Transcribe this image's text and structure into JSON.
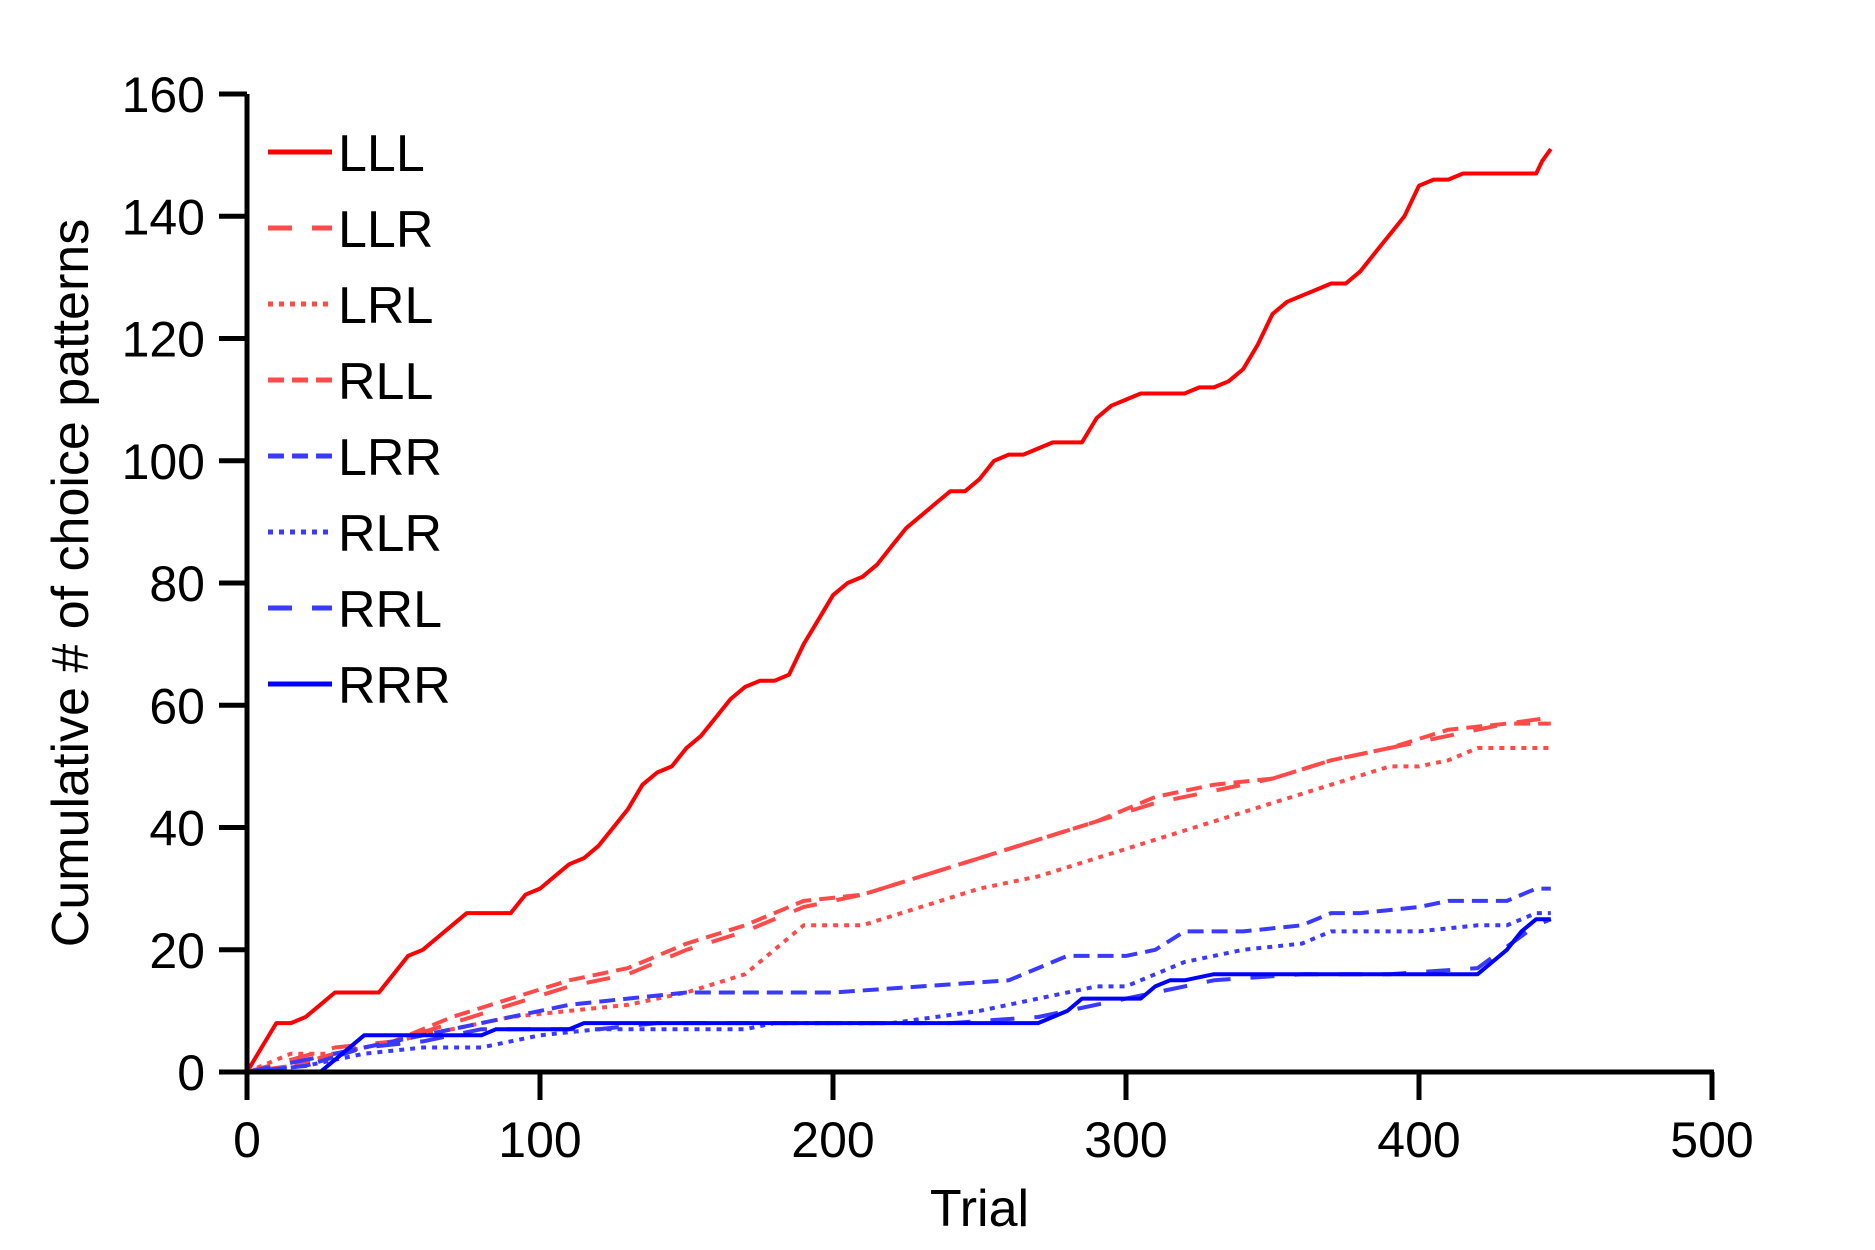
{
  "chart_data": {
    "type": "line",
    "title": "",
    "xlabel": "Trial",
    "ylabel": "Cumulative # of choice patterns",
    "xlim": [
      0,
      500
    ],
    "ylim": [
      0,
      160
    ],
    "xticks": [
      0,
      100,
      200,
      300,
      400,
      500
    ],
    "yticks": [
      0,
      20,
      40,
      60,
      80,
      100,
      120,
      140,
      160
    ],
    "grid": false,
    "legend_position": "top-left",
    "series": [
      {
        "name": "LLL",
        "color": "#ff0000",
        "style": "solid",
        "x": [
          0,
          5,
          10,
          15,
          20,
          25,
          30,
          40,
          45,
          50,
          55,
          60,
          65,
          70,
          75,
          80,
          90,
          95,
          100,
          105,
          110,
          115,
          120,
          125,
          130,
          135,
          140,
          145,
          150,
          155,
          160,
          165,
          170,
          175,
          180,
          185,
          190,
          195,
          200,
          205,
          210,
          215,
          220,
          225,
          230,
          235,
          240,
          245,
          250,
          255,
          260,
          265,
          270,
          275,
          280,
          285,
          290,
          295,
          300,
          305,
          310,
          315,
          320,
          325,
          330,
          335,
          340,
          345,
          350,
          355,
          360,
          365,
          370,
          375,
          380,
          385,
          390,
          395,
          400,
          405,
          410,
          415,
          420,
          425,
          430,
          435,
          440,
          442,
          445
        ],
        "y": [
          0,
          4,
          8,
          8,
          9,
          11,
          13,
          13,
          13,
          16,
          19,
          20,
          22,
          24,
          26,
          26,
          26,
          29,
          30,
          32,
          34,
          35,
          37,
          40,
          43,
          47,
          49,
          50,
          53,
          55,
          58,
          61,
          63,
          64,
          64,
          65,
          70,
          74,
          78,
          80,
          81,
          83,
          86,
          89,
          91,
          93,
          95,
          95,
          97,
          100,
          101,
          101,
          102,
          103,
          103,
          103,
          107,
          109,
          110,
          111,
          111,
          111,
          111,
          112,
          112,
          113,
          115,
          119,
          124,
          126,
          127,
          128,
          129,
          129,
          131,
          134,
          137,
          140,
          145,
          146,
          146,
          147,
          147,
          147,
          147,
          147,
          147,
          149,
          151
        ]
      },
      {
        "name": "LLR",
        "color": "#ff4a4a",
        "style": "longdash",
        "x": [
          0,
          15,
          30,
          50,
          70,
          90,
          110,
          130,
          150,
          170,
          190,
          210,
          230,
          250,
          270,
          290,
          310,
          330,
          350,
          370,
          390,
          410,
          430,
          445
        ],
        "y": [
          0,
          2,
          4,
          5,
          8,
          11,
          14,
          16,
          20,
          23,
          27,
          29,
          32,
          35,
          38,
          41,
          44,
          46,
          48,
          51,
          53,
          55,
          57,
          58
        ]
      },
      {
        "name": "LRL",
        "color": "#ff4a4a",
        "style": "dotted",
        "x": [
          0,
          15,
          30,
          50,
          70,
          90,
          110,
          130,
          150,
          170,
          180,
          190,
          210,
          230,
          250,
          270,
          290,
          310,
          330,
          350,
          370,
          390,
          400,
          410,
          420,
          445
        ],
        "y": [
          0,
          3,
          3,
          5,
          7,
          9,
          10,
          11,
          13,
          16,
          20,
          24,
          24,
          27,
          30,
          32,
          35,
          38,
          41,
          44,
          47,
          50,
          50,
          51,
          53,
          53
        ]
      },
      {
        "name": "RLL",
        "color": "#ff4a4a",
        "style": "dashed",
        "x": [
          0,
          15,
          30,
          50,
          70,
          90,
          110,
          130,
          150,
          170,
          190,
          210,
          230,
          250,
          270,
          290,
          310,
          330,
          350,
          370,
          390,
          410,
          430,
          445
        ],
        "y": [
          0,
          1,
          3,
          5,
          9,
          12,
          15,
          17,
          21,
          24,
          28,
          29,
          32,
          35,
          38,
          41,
          45,
          47,
          48,
          51,
          53,
          56,
          57,
          57
        ]
      },
      {
        "name": "LRR",
        "color": "#3a3aff",
        "style": "dashed",
        "x": [
          0,
          20,
          40,
          60,
          80,
          100,
          110,
          130,
          150,
          200,
          260,
          270,
          280,
          300,
          310,
          320,
          340,
          360,
          370,
          380,
          400,
          410,
          430,
          440,
          445
        ],
        "y": [
          0,
          1,
          4,
          6,
          8,
          10,
          11,
          12,
          13,
          13,
          15,
          17,
          19,
          19,
          20,
          23,
          23,
          24,
          26,
          26,
          27,
          28,
          28,
          30,
          30
        ]
      },
      {
        "name": "RLR",
        "color": "#3a3aff",
        "style": "dotted",
        "x": [
          0,
          20,
          40,
          60,
          80,
          100,
          120,
          140,
          170,
          180,
          220,
          250,
          270,
          290,
          300,
          310,
          320,
          340,
          360,
          370,
          380,
          400,
          420,
          430,
          440,
          445
        ],
        "y": [
          0,
          1,
          3,
          4,
          4,
          6,
          7,
          7,
          7,
          8,
          8,
          10,
          12,
          14,
          14,
          16,
          18,
          20,
          21,
          23,
          23,
          23,
          24,
          24,
          26,
          26
        ]
      },
      {
        "name": "RRL",
        "color": "#3a3aff",
        "style": "longdash",
        "x": [
          0,
          20,
          40,
          60,
          80,
          100,
          120,
          140,
          170,
          200,
          240,
          270,
          300,
          330,
          360,
          390,
          420,
          440,
          445
        ],
        "y": [
          0,
          2,
          4,
          5,
          7,
          7,
          7,
          8,
          8,
          8,
          8,
          9,
          12,
          15,
          16,
          16,
          17,
          24,
          25
        ]
      },
      {
        "name": "RRR",
        "color": "#0000ff",
        "style": "solid",
        "x": [
          0,
          25,
          30,
          40,
          80,
          85,
          110,
          115,
          270,
          275,
          280,
          285,
          305,
          310,
          315,
          320,
          330,
          420,
          425,
          430,
          435,
          440,
          445
        ],
        "y": [
          0,
          0,
          2,
          6,
          6,
          7,
          7,
          8,
          8,
          9,
          10,
          12,
          12,
          14,
          15,
          15,
          16,
          16,
          18,
          20,
          23,
          25,
          25
        ]
      }
    ]
  }
}
